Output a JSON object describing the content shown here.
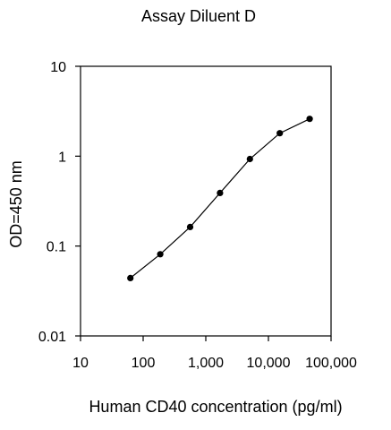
{
  "chart_data": {
    "type": "line",
    "title": "Assay Diluent D",
    "xlabel": "Human CD40 concentration (pg/ml)",
    "ylabel": "OD=450 nm",
    "x_scale": "log",
    "y_scale": "log",
    "xlim": [
      10,
      100000
    ],
    "ylim": [
      0.01,
      10
    ],
    "x_ticks": [
      10,
      100,
      1000,
      10000,
      100000
    ],
    "x_tick_labels": [
      "10",
      "100",
      "1,000",
      "10,000",
      "100,000"
    ],
    "y_ticks": [
      0.01,
      0.1,
      1,
      10
    ],
    "y_tick_labels": [
      "0.01",
      "0.1",
      "1",
      "10"
    ],
    "grid": false,
    "legend": "none",
    "series": [
      {
        "x": [
          62.5,
          187.5,
          562.5,
          1687.5,
          5062.5,
          15187.5,
          45562.5
        ],
        "y": [
          0.044,
          0.081,
          0.163,
          0.39,
          0.93,
          1.8,
          2.6
        ],
        "marker": "circle",
        "color": "#000000"
      }
    ]
  }
}
